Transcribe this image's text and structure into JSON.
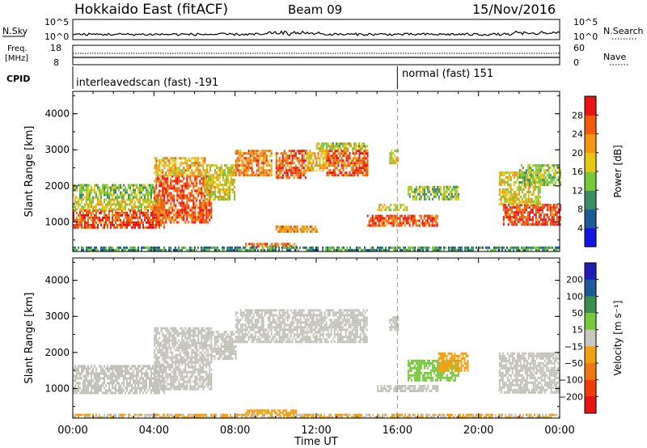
{
  "header": {
    "radar": "Hokkaido East (fitACF)",
    "beam": "Beam 09",
    "date": "15/Nov/2016"
  },
  "nsky": {
    "label": "N.Sky",
    "top_tick": "10^5",
    "bottom_tick": "10^0",
    "right_label": "N.Search",
    "right_top_tick": "10^5",
    "right_bottom_tick": "10^0"
  },
  "freq": {
    "label_line1": "Freq.",
    "label_line2": "[MHz]",
    "top_tick": "18",
    "bottom_tick": "8",
    "right_label": "Nave",
    "right_top_tick": "60",
    "right_bottom_tick": "0"
  },
  "cpid": {
    "label": "CPID",
    "segment1": "interleavedscan (fast) -191",
    "segment2": "normal (fast) 151",
    "switch_hour": 16
  },
  "colors": {
    "power_scale": [
      "#1414e6",
      "#1e5a96",
      "#3c8c64",
      "#78c83c",
      "#e6c814",
      "#f09614",
      "#f05a0a",
      "#e61414"
    ],
    "velocity_scale": [
      "#1e1eb4",
      "#1e5a96",
      "#3c8c50",
      "#78c83c",
      "#c8c8c0",
      "#f0a014",
      "#f07814",
      "#f03c0a",
      "#e61414"
    ],
    "ground_scatter": "#c0c0b8"
  },
  "chart_data": [
    {
      "type": "heatmap",
      "name": "power",
      "ylabel": "Slant Range [km]",
      "xlabel": "Time UT",
      "x_ticks": [
        "00:00",
        "04:00",
        "08:00",
        "12:00",
        "16:00",
        "20:00",
        "00:00"
      ],
      "y_ticks": [
        "1000",
        "2000",
        "3000",
        "4000"
      ],
      "xlim_hours": [
        0,
        24
      ],
      "ylim_km": [
        180,
        4620
      ],
      "colorbar": {
        "label": "Power [dB]",
        "ticks": [
          "4",
          "8",
          "12",
          "16",
          "20",
          "24",
          "28"
        ],
        "range": [
          0,
          32
        ]
      },
      "regions": [
        {
          "t0": 0.0,
          "t1": 4.5,
          "r0": 850,
          "r1": 1350,
          "value": 27
        },
        {
          "t0": 0.0,
          "t1": 4.5,
          "r0": 1350,
          "r1": 1650,
          "value": 18
        },
        {
          "t0": 0.0,
          "t1": 4.0,
          "r0": 1650,
          "r1": 2050,
          "value": 14
        },
        {
          "t0": 4.0,
          "t1": 6.8,
          "r0": 1000,
          "r1": 2300,
          "value": 26
        },
        {
          "t0": 4.0,
          "t1": 6.5,
          "r0": 2300,
          "r1": 2800,
          "value": 20
        },
        {
          "t0": 6.5,
          "t1": 8.0,
          "r0": 1600,
          "r1": 2600,
          "value": 18
        },
        {
          "t0": 8.0,
          "t1": 9.8,
          "r0": 2300,
          "r1": 3000,
          "value": 24
        },
        {
          "t0": 10.0,
          "t1": 11.5,
          "r0": 2200,
          "r1": 3000,
          "value": 26
        },
        {
          "t0": 11.5,
          "t1": 12.5,
          "r0": 2400,
          "r1": 3000,
          "value": 20
        },
        {
          "t0": 12.5,
          "t1": 14.5,
          "r0": 2300,
          "r1": 3000,
          "value": 26
        },
        {
          "t0": 12.0,
          "t1": 14.5,
          "r0": 3000,
          "r1": 3200,
          "value": 16
        },
        {
          "t0": 15.6,
          "t1": 16.0,
          "r0": 2600,
          "r1": 3000,
          "value": 18
        },
        {
          "t0": 15.0,
          "t1": 16.5,
          "r0": 1300,
          "r1": 1500,
          "value": 18
        },
        {
          "t0": 16.5,
          "t1": 19.0,
          "r0": 1600,
          "r1": 2000,
          "value": 14
        },
        {
          "t0": 14.5,
          "t1": 18.0,
          "r0": 900,
          "r1": 1200,
          "value": 26
        },
        {
          "t0": 10.0,
          "t1": 12.0,
          "r0": 700,
          "r1": 900,
          "value": 24
        },
        {
          "t0": 21.2,
          "t1": 24.0,
          "r0": 900,
          "r1": 1500,
          "value": 28
        },
        {
          "t0": 21.0,
          "t1": 23.0,
          "r0": 1500,
          "r1": 2400,
          "value": 18
        },
        {
          "t0": 22.0,
          "t1": 24.0,
          "r0": 2000,
          "r1": 2600,
          "value": 14
        },
        {
          "t0": 8.5,
          "t1": 11.0,
          "r0": 300,
          "r1": 420,
          "value": 26
        },
        {
          "t0": 0.0,
          "t1": 24.0,
          "r0": 200,
          "r1": 320,
          "value": 10
        }
      ]
    },
    {
      "type": "heatmap",
      "name": "velocity",
      "ylabel": "Slant Range [km]",
      "xlabel": "Time UT",
      "x_ticks": [
        "00:00",
        "04:00",
        "08:00",
        "12:00",
        "16:00",
        "20:00",
        "00:00"
      ],
      "y_ticks": [
        "1000",
        "2000",
        "3000",
        "4000"
      ],
      "xlim_hours": [
        0,
        24
      ],
      "ylim_km": [
        180,
        4620
      ],
      "colorbar": {
        "label": "Velocity [m s⁻¹]",
        "ticks": [
          "200",
          "100",
          "50",
          "15",
          "−15",
          "−50",
          "−100",
          "−200"
        ],
        "range": [
          -250,
          250
        ]
      },
      "regions": [
        {
          "t0": 0.0,
          "t1": 4.5,
          "r0": 850,
          "r1": 1650,
          "value": 0
        },
        {
          "t0": 4.0,
          "t1": 6.8,
          "r0": 1000,
          "r1": 2700,
          "value": 0
        },
        {
          "t0": 6.8,
          "t1": 8.0,
          "r0": 1800,
          "r1": 2600,
          "value": 0
        },
        {
          "t0": 8.0,
          "t1": 14.5,
          "r0": 2300,
          "r1": 3200,
          "value": 0
        },
        {
          "t0": 15.6,
          "t1": 16.0,
          "r0": 2600,
          "r1": 3000,
          "value": 0
        },
        {
          "t0": 16.5,
          "t1": 19.0,
          "r0": 1200,
          "r1": 1800,
          "value": 60
        },
        {
          "t0": 18.0,
          "t1": 19.5,
          "r0": 1500,
          "r1": 2000,
          "value": -60
        },
        {
          "t0": 21.0,
          "t1": 24.0,
          "r0": 900,
          "r1": 2000,
          "value": 0
        },
        {
          "t0": 15.0,
          "t1": 18.0,
          "r0": 900,
          "r1": 1100,
          "value": 0
        },
        {
          "t0": 8.5,
          "t1": 11.0,
          "r0": 300,
          "r1": 420,
          "value": -60
        },
        {
          "t0": 0.0,
          "t1": 24.0,
          "r0": 200,
          "r1": 300,
          "value": -30
        }
      ]
    }
  ]
}
